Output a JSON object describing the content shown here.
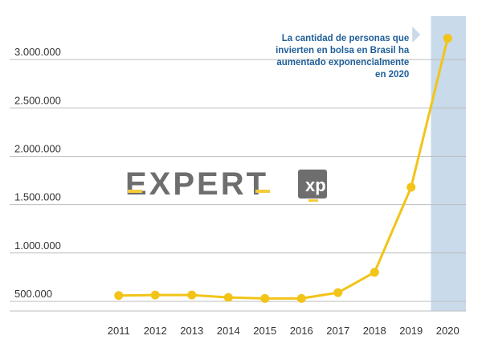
{
  "chart_data": {
    "type": "line",
    "x": [
      "2011",
      "2012",
      "2013",
      "2014",
      "2015",
      "2016",
      "2017",
      "2018",
      "2019",
      "2020"
    ],
    "series": [
      {
        "values": [
          560000,
          565000,
          565000,
          540000,
          530000,
          530000,
          590000,
          800000,
          1680000,
          3220000
        ]
      }
    ],
    "yticks": [
      "500.000",
      "1.000.000",
      "1.500.000",
      "2.000.000",
      "2.500.000",
      "3.000.000"
    ],
    "ytick_values": [
      500000,
      1000000,
      1500000,
      2000000,
      2500000,
      3000000
    ],
    "ylim": [
      400000,
      3450000
    ],
    "grid": true,
    "highlight_category": "2020",
    "highlight_color": "#c9daea",
    "line_color": "#f2c418",
    "annotation": {
      "lines": [
        "La cantidad de personas que",
        "invierten en bolsa en Brasil ha",
        "aumentado exponencialmente",
        "en 2020"
      ]
    }
  },
  "watermark": {
    "text": "EXPERT",
    "badge": "xp"
  }
}
